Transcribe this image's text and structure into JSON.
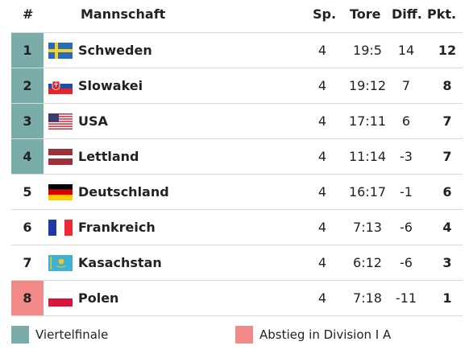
{
  "header": {
    "rank": "#",
    "team": "Mannschaft",
    "sp": "Sp.",
    "tore": "Tore",
    "diff": "Diff.",
    "pkt": "Pkt."
  },
  "rows": [
    {
      "rank": "1",
      "team": "Schweden",
      "sp": "4",
      "tore": "19:5",
      "diff": "14",
      "pkt": "12",
      "flag": "sweden-flag",
      "status": "q"
    },
    {
      "rank": "2",
      "team": "Slowakei",
      "sp": "4",
      "tore": "19:12",
      "diff": "7",
      "pkt": "8",
      "flag": "slovakia-flag",
      "status": "q"
    },
    {
      "rank": "3",
      "team": "USA",
      "sp": "4",
      "tore": "17:11",
      "diff": "6",
      "pkt": "7",
      "flag": "usa-flag",
      "status": "q"
    },
    {
      "rank": "4",
      "team": "Lettland",
      "sp": "4",
      "tore": "11:14",
      "diff": "-3",
      "pkt": "7",
      "flag": "latvia-flag",
      "status": "q"
    },
    {
      "rank": "5",
      "team": "Deutschland",
      "sp": "4",
      "tore": "16:17",
      "diff": "-1",
      "pkt": "6",
      "flag": "germany-flag",
      "status": ""
    },
    {
      "rank": "6",
      "team": "Frankreich",
      "sp": "4",
      "tore": "7:13",
      "diff": "-6",
      "pkt": "4",
      "flag": "france-flag",
      "status": ""
    },
    {
      "rank": "7",
      "team": "Kasachstan",
      "sp": "4",
      "tore": "6:12",
      "diff": "-6",
      "pkt": "3",
      "flag": "kazakhstan-flag",
      "status": ""
    },
    {
      "rank": "8",
      "team": "Polen",
      "sp": "4",
      "tore": "7:18",
      "diff": "-11",
      "pkt": "1",
      "flag": "poland-flag",
      "status": "r"
    }
  ],
  "legend": {
    "quarterfinal": "Viertelfinale",
    "relegation": "Abstieg in Division I A"
  },
  "colors": {
    "quarterfinal": "#7aacaa",
    "relegation": "#f38a8a"
  }
}
